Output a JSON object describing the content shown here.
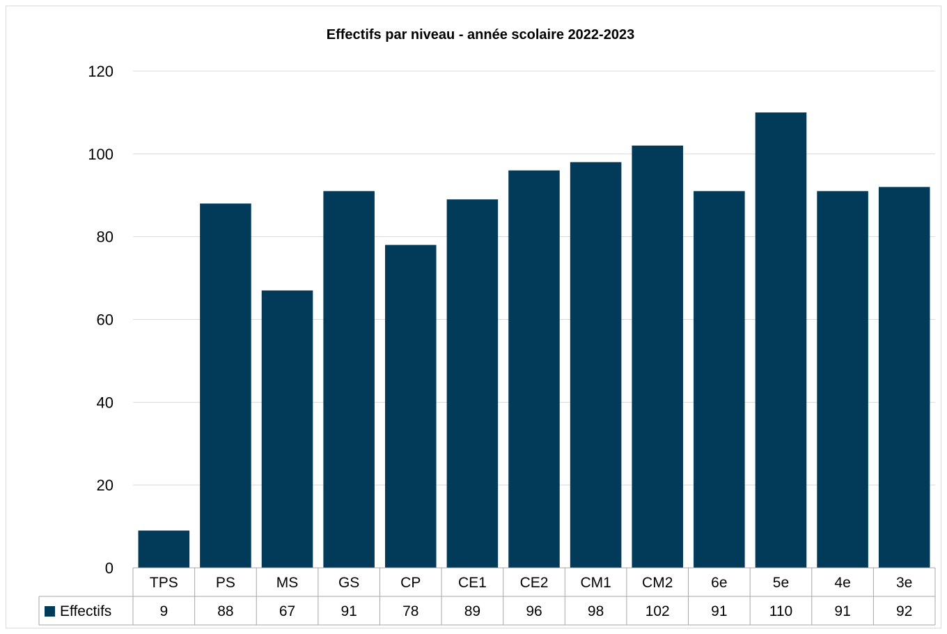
{
  "chart_data": {
    "type": "bar",
    "title": "Effectifs par niveau - année scolaire 2022-2023",
    "categories": [
      "TPS",
      "PS",
      "MS",
      "GS",
      "CP",
      "CE1",
      "CE2",
      "CM1",
      "CM2",
      "6e",
      "5e",
      "4e",
      "3e"
    ],
    "series": [
      {
        "name": "Effectifs",
        "values": [
          9,
          88,
          67,
          91,
          78,
          89,
          96,
          98,
          102,
          91,
          110,
          91,
          92
        ]
      }
    ],
    "ylim": [
      0,
      120
    ],
    "yticks": [
      0,
      20,
      40,
      60,
      80,
      100,
      120
    ],
    "grid": true,
    "legend": "data-table-left",
    "data_table": true,
    "colors": {
      "bar": "#023A5A",
      "grid": "#d9d9d9",
      "table_border": "#a6a6a6"
    }
  }
}
